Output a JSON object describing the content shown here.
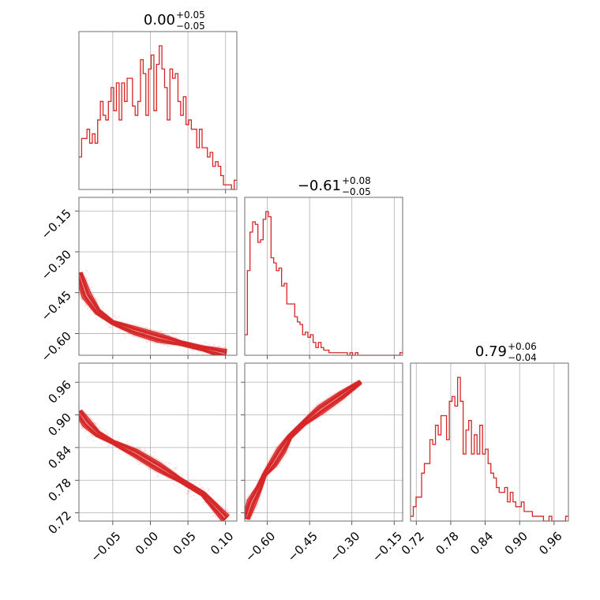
{
  "figure": {
    "type": "corner",
    "series_color": "#d62728"
  },
  "chart_data": [
    {
      "type": "histogram",
      "panel": "1-1",
      "title": {
        "value": "0.00",
        "plus": "+0.05",
        "minus": "−0.05"
      },
      "xlim": [
        -0.095,
        0.115
      ],
      "x_ticks": [
        -0.05,
        0.0,
        0.05,
        0.1
      ],
      "bin_edges_range": [
        -0.095,
        0.115
      ],
      "counts": [
        7,
        11,
        11,
        13,
        10,
        12,
        10,
        15,
        19,
        16,
        15,
        19,
        22,
        17,
        23,
        15,
        23,
        19,
        24,
        24,
        18,
        16,
        19,
        28,
        25,
        16,
        26,
        29,
        17,
        27,
        31,
        26,
        22,
        15,
        26,
        24,
        25,
        19,
        16,
        20,
        14,
        15,
        13,
        13,
        9,
        13,
        9,
        9,
        7,
        8,
        5,
        6,
        5,
        3,
        1,
        1,
        1,
        0,
        2
      ]
    },
    {
      "type": "histogram",
      "panel": "2-2",
      "title": {
        "value": "−0.61",
        "plus": "+0.08",
        "minus": "−0.05"
      },
      "xlim": [
        -0.68,
        -0.12
      ],
      "x_ticks": [
        -0.6,
        -0.45,
        -0.3,
        -0.15
      ],
      "bin_edges_range": [
        -0.68,
        -0.12
      ],
      "counts": [
        8,
        33,
        48,
        52,
        51,
        44,
        45,
        53,
        56,
        54,
        38,
        36,
        33,
        34,
        27,
        28,
        20,
        20,
        20,
        15,
        13,
        12,
        8,
        9,
        7,
        8,
        5,
        3,
        5,
        3,
        2,
        2,
        1,
        1,
        1,
        1,
        1,
        1,
        1,
        0,
        1,
        0,
        1,
        0,
        0,
        0,
        0,
        0,
        0,
        0,
        0,
        0,
        0,
        0,
        0,
        0,
        0,
        0,
        0,
        1
      ]
    },
    {
      "type": "histogram",
      "panel": "3-3",
      "title": {
        "value": "0.79",
        "plus": "+0.06",
        "minus": "−0.04"
      },
      "xlim": [
        0.71,
        0.985
      ],
      "x_ticks": [
        0.72,
        0.78,
        0.84,
        0.9,
        0.96
      ],
      "bin_edges_range": [
        0.71,
        0.985
      ],
      "counts": [
        1,
        3,
        5,
        5,
        10,
        12,
        12,
        17,
        16,
        20,
        18,
        22,
        22,
        17,
        25,
        26,
        24,
        30,
        25,
        14,
        19,
        21,
        14,
        18,
        14,
        20,
        14,
        15,
        12,
        10,
        9,
        7,
        6,
        6,
        7,
        4,
        6,
        4,
        3,
        3,
        4,
        2,
        2,
        2,
        1,
        1,
        1,
        1,
        0,
        0,
        1,
        0,
        0,
        0,
        0,
        0,
        1
      ]
    },
    {
      "type": "contour",
      "panel": "2-1",
      "xlim": [
        -0.095,
        0.115
      ],
      "ylim": [
        -0.68,
        -0.1
      ],
      "x_ticks": [
        -0.05,
        0.0,
        0.05,
        0.1
      ],
      "y_ticks": [
        -0.15,
        -0.3,
        -0.45,
        -0.6
      ],
      "ridge": [
        [
          -0.095,
          -0.38
        ],
        [
          -0.085,
          -0.46
        ],
        [
          -0.07,
          -0.52
        ],
        [
          -0.05,
          -0.56
        ],
        [
          -0.02,
          -0.59
        ],
        [
          0.01,
          -0.615
        ],
        [
          0.04,
          -0.635
        ],
        [
          0.07,
          -0.655
        ],
        [
          0.1,
          -0.675
        ]
      ]
    },
    {
      "type": "contour",
      "panel": "3-1",
      "xlim": [
        -0.095,
        0.115
      ],
      "ylim": [
        0.705,
        0.995
      ],
      "x_ticks": [
        -0.05,
        0.0,
        0.05,
        0.1
      ],
      "y_ticks": [
        0.96,
        0.9,
        0.84,
        0.78,
        0.72
      ],
      "ridge": [
        [
          -0.095,
          0.905
        ],
        [
          -0.085,
          0.885
        ],
        [
          -0.07,
          0.865
        ],
        [
          -0.05,
          0.85
        ],
        [
          -0.02,
          0.83
        ],
        [
          0.01,
          0.805
        ],
        [
          0.04,
          0.78
        ],
        [
          0.07,
          0.755
        ],
        [
          0.1,
          0.71
        ]
      ]
    },
    {
      "type": "contour",
      "panel": "3-2",
      "xlim": [
        -0.68,
        -0.12
      ],
      "ylim": [
        0.705,
        0.995
      ],
      "x_ticks": [
        -0.6,
        -0.45,
        -0.3,
        -0.15
      ],
      "y_ticks": [
        0.96,
        0.9,
        0.84,
        0.78,
        0.72
      ],
      "ridge": [
        [
          -0.675,
          0.71
        ],
        [
          -0.655,
          0.74
        ],
        [
          -0.63,
          0.765
        ],
        [
          -0.61,
          0.79
        ],
        [
          -0.58,
          0.81
        ],
        [
          -0.55,
          0.835
        ],
        [
          -0.52,
          0.86
        ],
        [
          -0.47,
          0.885
        ],
        [
          -0.41,
          0.91
        ],
        [
          -0.34,
          0.935
        ],
        [
          -0.27,
          0.96
        ]
      ]
    }
  ]
}
